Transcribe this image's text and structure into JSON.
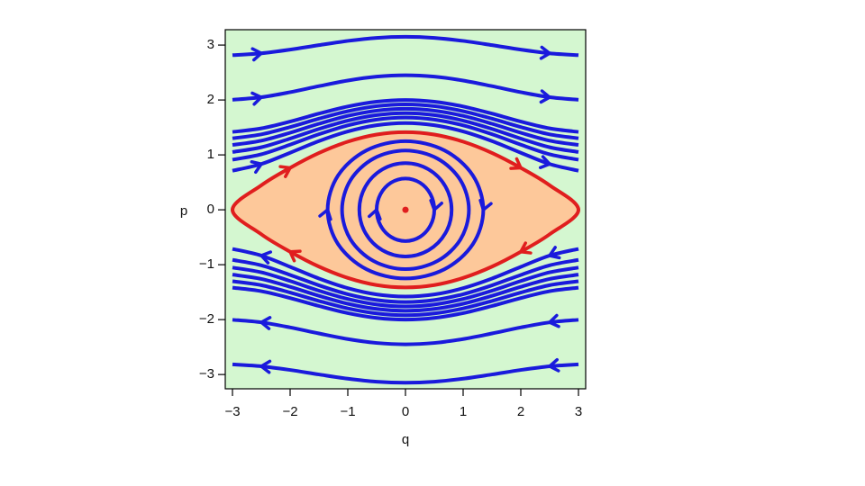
{
  "chart_data": {
    "type": "line",
    "xlabel": "q",
    "ylabel": "p",
    "xlim": [
      -3.125,
      3.125
    ],
    "ylim": [
      -3.26,
      3.28
    ],
    "xticks": [
      {
        "value": -3,
        "label": "−3"
      },
      {
        "value": -2,
        "label": "−2"
      },
      {
        "value": -1,
        "label": "−1"
      },
      0,
      1,
      2,
      3
    ],
    "yticks": [
      {
        "value": -3,
        "label": "−3"
      },
      {
        "value": -2,
        "label": "−2"
      },
      {
        "value": -1,
        "label": "−1"
      },
      0,
      1,
      2,
      3
    ],
    "background": "#d4f7d0",
    "series": [
      {
        "color": "#e01e1e",
        "fill": "#fdc89a",
        "closed": true,
        "arrows": true,
        "x": [
          -3,
          -2.5,
          -2,
          -1.5,
          -1,
          -0.5,
          0,
          0.5,
          1,
          1.5,
          2,
          2.5,
          3,
          2.5,
          2,
          1.5,
          1,
          0.5,
          0,
          -0.5,
          -1,
          -1.5,
          -2,
          -2.5
        ],
        "values": [
          0,
          0.446,
          0.764,
          1.035,
          1.241,
          1.371,
          1.414,
          1.371,
          1.241,
          1.035,
          0.764,
          0.446,
          0,
          -0.446,
          -0.764,
          -1.035,
          -1.241,
          -1.371,
          -1.414,
          -1.371,
          -1.241,
          -1.035,
          -0.764,
          -0.446
        ]
      },
      {
        "color": "#1a1adc",
        "arrows": true,
        "x": [
          -3,
          -2.5,
          -2,
          -1.5,
          -1,
          -0.5,
          0,
          0.5,
          1,
          1.5,
          2,
          2.5,
          3
        ],
        "values": [
          2.816,
          2.85,
          2.917,
          2.999,
          3.076,
          3.131,
          3.15,
          3.131,
          3.076,
          2.999,
          2.917,
          2.85,
          2.816
        ]
      },
      {
        "color": "#1a1adc",
        "arrows": true,
        "x": [
          -3,
          -2.5,
          -2,
          -1.5,
          -1,
          -0.5,
          0,
          0.5,
          1,
          1.5,
          2,
          2.5,
          3
        ],
        "values": [
          2.003,
          2.05,
          2.142,
          2.252,
          2.354,
          2.425,
          2.45,
          2.425,
          2.354,
          2.252,
          2.142,
          2.05,
          2.003
        ]
      },
      {
        "color": "#1a1adc",
        "x": [
          -3,
          -2.5,
          -2,
          -1.5,
          -1,
          -0.5,
          0,
          0.5,
          1,
          1.5,
          2,
          2.5,
          3
        ],
        "values": [
          1.418,
          1.483,
          1.607,
          1.752,
          1.882,
          1.969,
          2.0,
          1.969,
          1.882,
          1.752,
          1.607,
          1.483,
          1.418
        ]
      },
      {
        "color": "#1a1adc",
        "x": [
          -3,
          -2.5,
          -2,
          -1.5,
          -1,
          -0.5,
          0,
          0.5,
          1,
          1.5,
          2,
          2.5,
          3
        ],
        "values": [
          1.302,
          1.373,
          1.507,
          1.66,
          1.796,
          1.888,
          1.92,
          1.888,
          1.796,
          1.66,
          1.507,
          1.373,
          1.302
        ]
      },
      {
        "color": "#1a1adc",
        "x": [
          -3,
          -2.5,
          -2,
          -1.5,
          -1,
          -0.5,
          0,
          0.5,
          1,
          1.5,
          2,
          2.5,
          3
        ],
        "values": [
          1.181,
          1.259,
          1.403,
          1.567,
          1.711,
          1.806,
          1.84,
          1.806,
          1.711,
          1.567,
          1.403,
          1.259,
          1.181
        ]
      },
      {
        "color": "#1a1adc",
        "x": [
          -3,
          -2.5,
          -2,
          -1.5,
          -1,
          -0.5,
          0,
          0.5,
          1,
          1.5,
          2,
          2.5,
          3
        ],
        "values": [
          1.052,
          1.139,
          1.297,
          1.473,
          1.624,
          1.725,
          1.76,
          1.725,
          1.624,
          1.473,
          1.297,
          1.139,
          1.052
        ]
      },
      {
        "color": "#1a1adc",
        "x": [
          -3,
          -2.5,
          -2,
          -1.5,
          -1,
          -0.5,
          0,
          0.5,
          1,
          1.5,
          2,
          2.5,
          3
        ],
        "values": [
          0.912,
          1.011,
          1.186,
          1.376,
          1.537,
          1.643,
          1.68,
          1.643,
          1.537,
          1.376,
          1.186,
          1.011,
          0.912
        ]
      },
      {
        "color": "#1a1adc",
        "arrows": true,
        "x": [
          -3,
          -2.5,
          -2,
          -1.5,
          -1,
          -0.5,
          0,
          0.5,
          1,
          1.5,
          2,
          2.5,
          3
        ],
        "values": [
          0.712,
          0.834,
          1.039,
          1.252,
          1.427,
          1.541,
          1.58,
          1.541,
          1.427,
          1.252,
          1.039,
          0.834,
          0.712
        ]
      },
      {
        "color": "#1a1adc",
        "arrows": true,
        "x": [
          3,
          2.5,
          2,
          1.5,
          1,
          0.5,
          0,
          -0.5,
          -1,
          -1.5,
          -2,
          -2.5,
          -3
        ],
        "values": [
          -2.816,
          -2.85,
          -2.917,
          -2.999,
          -3.076,
          -3.131,
          -3.15,
          -3.131,
          -3.076,
          -2.999,
          -2.917,
          -2.85,
          -2.816
        ]
      },
      {
        "color": "#1a1adc",
        "arrows": true,
        "x": [
          3,
          2.5,
          2,
          1.5,
          1,
          0.5,
          0,
          -0.5,
          -1,
          -1.5,
          -2,
          -2.5,
          -3
        ],
        "values": [
          -2.003,
          -2.05,
          -2.142,
          -2.252,
          -2.354,
          -2.425,
          -2.45,
          -2.425,
          -2.354,
          -2.252,
          -2.142,
          -2.05,
          -2.003
        ]
      },
      {
        "color": "#1a1adc",
        "x": [
          3,
          2.5,
          2,
          1.5,
          1,
          0.5,
          0,
          -0.5,
          -1,
          -1.5,
          -2,
          -2.5,
          -3
        ],
        "values": [
          -1.418,
          -1.483,
          -1.607,
          -1.752,
          -1.882,
          -1.969,
          -2.0,
          -1.969,
          -1.882,
          -1.752,
          -1.607,
          -1.483,
          -1.418
        ]
      },
      {
        "color": "#1a1adc",
        "x": [
          3,
          2.5,
          2,
          1.5,
          1,
          0.5,
          0,
          -0.5,
          -1,
          -1.5,
          -2,
          -2.5,
          -3
        ],
        "values": [
          -1.302,
          -1.373,
          -1.507,
          -1.66,
          -1.796,
          -1.888,
          -1.92,
          -1.888,
          -1.796,
          -1.66,
          -1.507,
          -1.373,
          -1.302
        ]
      },
      {
        "color": "#1a1adc",
        "x": [
          3,
          2.5,
          2,
          1.5,
          1,
          0.5,
          0,
          -0.5,
          -1,
          -1.5,
          -2,
          -2.5,
          -3
        ],
        "values": [
          -1.181,
          -1.259,
          -1.403,
          -1.567,
          -1.711,
          -1.806,
          -1.84,
          -1.806,
          -1.711,
          -1.567,
          -1.403,
          -1.259,
          -1.181
        ]
      },
      {
        "color": "#1a1adc",
        "x": [
          3,
          2.5,
          2,
          1.5,
          1,
          0.5,
          0,
          -0.5,
          -1,
          -1.5,
          -2,
          -2.5,
          -3
        ],
        "values": [
          -1.052,
          -1.139,
          -1.297,
          -1.473,
          -1.624,
          -1.725,
          -1.76,
          -1.725,
          -1.624,
          -1.473,
          -1.297,
          -1.139,
          -1.052
        ]
      },
      {
        "color": "#1a1adc",
        "x": [
          3,
          2.5,
          2,
          1.5,
          1,
          0.5,
          0,
          -0.5,
          -1,
          -1.5,
          -2,
          -2.5,
          -3
        ],
        "values": [
          -0.912,
          -1.011,
          -1.186,
          -1.376,
          -1.537,
          -1.643,
          -1.68,
          -1.643,
          -1.537,
          -1.376,
          -1.186,
          -1.011,
          -0.912
        ]
      },
      {
        "color": "#1a1adc",
        "arrows": true,
        "x": [
          3,
          2.5,
          2,
          1.5,
          1,
          0.5,
          0,
          -0.5,
          -1,
          -1.5,
          -2,
          -2.5,
          -3
        ],
        "values": [
          -0.712,
          -0.834,
          -1.039,
          -1.252,
          -1.427,
          -1.541,
          -1.58,
          -1.541,
          -1.427,
          -1.252,
          -1.039,
          -0.834,
          -0.712
        ]
      },
      {
        "color": "#1a1adc",
        "closed": true,
        "arrows": true,
        "x": [
          0.5,
          0.433,
          0.25,
          0,
          -0.25,
          -0.433,
          -0.5,
          -0.433,
          -0.25,
          0,
          0.25,
          0.433
        ],
        "values": [
          0,
          -0.285,
          -0.494,
          -0.57,
          -0.494,
          -0.285,
          0,
          0.285,
          0.494,
          0.57,
          0.494,
          0.285
        ]
      },
      {
        "color": "#1a1adc",
        "closed": true,
        "x": [
          0.8,
          0.693,
          0.4,
          0,
          -0.4,
          -0.693,
          -0.8,
          -0.693,
          -0.4,
          0,
          0.4,
          0.693
        ],
        "values": [
          0,
          -0.425,
          -0.736,
          -0.85,
          -0.736,
          -0.425,
          0,
          0.425,
          0.736,
          0.85,
          0.736,
          0.425
        ]
      },
      {
        "color": "#1a1adc",
        "closed": true,
        "x": [
          1.1,
          0.953,
          0.55,
          0,
          -0.55,
          -0.953,
          -1.1,
          -0.953,
          -0.55,
          0,
          0.55,
          0.953
        ],
        "values": [
          0,
          -0.54,
          -0.935,
          -1.08,
          -0.935,
          -0.54,
          0,
          0.54,
          0.935,
          1.08,
          0.935,
          0.54
        ]
      },
      {
        "color": "#1a1adc",
        "closed": true,
        "arrows": true,
        "x": [
          1.35,
          1.169,
          0.675,
          0,
          -0.675,
          -1.169,
          -1.35,
          -1.169,
          -0.675,
          0,
          0.675,
          1.169
        ],
        "values": [
          0,
          -0.625,
          -1.083,
          -1.25,
          -1.083,
          -0.625,
          0,
          0.625,
          1.083,
          1.25,
          1.083,
          0.625
        ]
      },
      {
        "color": "#e01e1e",
        "marker": true,
        "x": [
          0
        ],
        "values": [
          0
        ]
      }
    ]
  }
}
